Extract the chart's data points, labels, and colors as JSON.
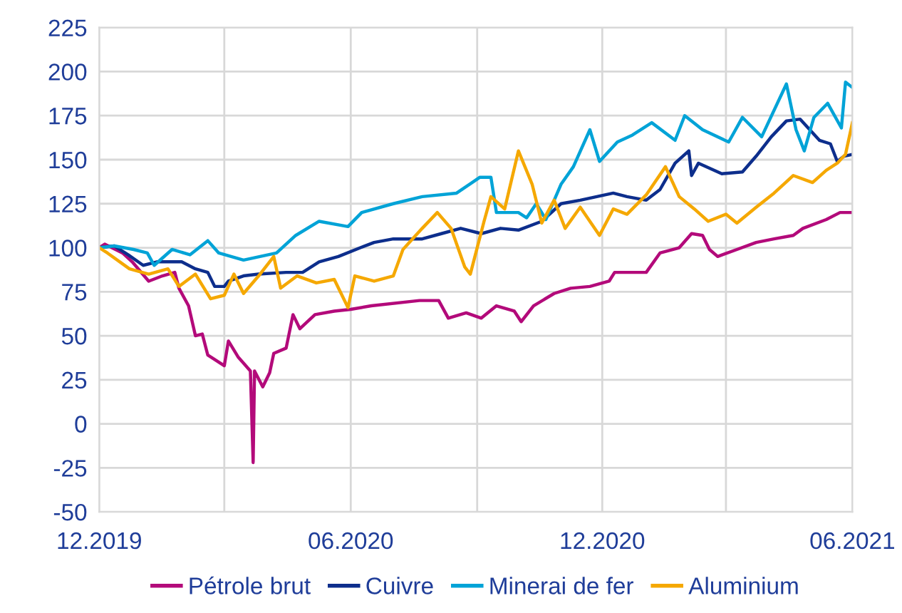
{
  "chart_data": {
    "type": "line",
    "xlim": [
      "2019-12-01",
      "2021-06-01"
    ],
    "xticks": [
      {
        "value": "2019-12-01",
        "label": "12.2019"
      },
      {
        "value": "2020-03-01",
        "label": null
      },
      {
        "value": "2020-06-01",
        "label": "06.2020"
      },
      {
        "value": "2020-09-01",
        "label": null
      },
      {
        "value": "2020-12-01",
        "label": "12.2020"
      },
      {
        "value": "2021-03-01",
        "label": null
      },
      {
        "value": "2021-06-01",
        "label": "06.2021"
      }
    ],
    "ylim": [
      -50,
      225
    ],
    "yticks": [
      -50,
      -25,
      0,
      25,
      50,
      75,
      100,
      125,
      150,
      175,
      200,
      225
    ],
    "grid": true,
    "legend": "bottom",
    "line_style": "solid",
    "marker": "none",
    "series": [
      {
        "name": "Pétrole brut",
        "color": "#b30a7a",
        "x": [
          "2019-12-01",
          "2019-12-05",
          "2019-12-18",
          "2019-12-25",
          "2020-01-06",
          "2020-01-16",
          "2020-01-25",
          "2020-01-28",
          "2020-02-04",
          "2020-02-09",
          "2020-02-14",
          "2020-02-18",
          "2020-03-01",
          "2020-03-04",
          "2020-03-11",
          "2020-03-20",
          "2020-03-22",
          "2020-03-23",
          "2020-03-29",
          "2020-04-03",
          "2020-04-06",
          "2020-04-15",
          "2020-04-20",
          "2020-04-25",
          "2020-05-06",
          "2020-05-20",
          "2020-06-01",
          "2020-06-16",
          "2020-07-21",
          "2020-08-04",
          "2020-08-11",
          "2020-08-24",
          "2020-09-04",
          "2020-09-15",
          "2020-09-28",
          "2020-10-03",
          "2020-10-12",
          "2020-10-27",
          "2020-11-08",
          "2020-11-22",
          "2020-12-06",
          "2020-12-10",
          "2021-01-02",
          "2021-01-12",
          "2021-01-26",
          "2021-02-04",
          "2021-02-12",
          "2021-02-17",
          "2021-02-23",
          "2021-03-09",
          "2021-03-23",
          "2021-04-05",
          "2021-04-19",
          "2021-04-26",
          "2021-05-13",
          "2021-05-23",
          "2021-06-01"
        ],
        "values": [
          100,
          102,
          97,
          92,
          81,
          84,
          86,
          77,
          67,
          50,
          51,
          39,
          33,
          47,
          38,
          30,
          -22,
          30,
          21,
          29,
          40,
          43,
          62,
          54,
          62,
          64,
          65,
          67,
          70,
          70,
          60,
          63,
          60,
          67,
          64,
          58,
          67,
          74,
          77,
          78,
          81,
          86,
          86,
          97,
          100,
          108,
          107,
          99,
          95,
          99,
          103,
          105,
          107,
          111,
          116,
          120,
          120
        ]
      },
      {
        "name": "Cuivre",
        "color": "#0d2e8c",
        "x": [
          "2019-12-01",
          "2019-12-12",
          "2019-12-22",
          "2020-01-02",
          "2020-01-12",
          "2020-01-30",
          "2020-02-09",
          "2020-02-18",
          "2020-02-23",
          "2020-03-01",
          "2020-03-04",
          "2020-03-15",
          "2020-03-26",
          "2020-04-15",
          "2020-04-27",
          "2020-05-09",
          "2020-05-23",
          "2020-06-08",
          "2020-06-18",
          "2020-07-02",
          "2020-07-23",
          "2020-08-06",
          "2020-08-20",
          "2020-09-04",
          "2020-09-18",
          "2020-10-01",
          "2020-10-18",
          "2020-11-01",
          "2020-11-15",
          "2020-12-09",
          "2020-12-19",
          "2021-01-02",
          "2021-01-12",
          "2021-01-23",
          "2021-02-02",
          "2021-02-04",
          "2021-02-09",
          "2021-02-26",
          "2021-03-13",
          "2021-03-23",
          "2021-04-03",
          "2021-04-14",
          "2021-04-24",
          "2021-05-01",
          "2021-05-08",
          "2021-05-16",
          "2021-05-21",
          "2021-05-26",
          "2021-06-01"
        ],
        "values": [
          100,
          101,
          96,
          90,
          92,
          92,
          88,
          86,
          78,
          78,
          81,
          84,
          85,
          86,
          86,
          92,
          95,
          100,
          103,
          105,
          105,
          108,
          111,
          108,
          111,
          110,
          115,
          125,
          127,
          131,
          129,
          127,
          133,
          148,
          155,
          141,
          148,
          142,
          143,
          152,
          163,
          172,
          173,
          167,
          161,
          159,
          149,
          152,
          153
        ]
      },
      {
        "name": "Minerai de fer",
        "color": "#00a3d7",
        "x": [
          "2019-12-01",
          "2019-12-12",
          "2019-12-26",
          "2020-01-05",
          "2020-01-10",
          "2020-01-23",
          "2020-02-05",
          "2020-02-18",
          "2020-02-26",
          "2020-03-15",
          "2020-04-08",
          "2020-04-22",
          "2020-05-09",
          "2020-05-30",
          "2020-06-09",
          "2020-07-02",
          "2020-07-23",
          "2020-08-17",
          "2020-09-03",
          "2020-09-11",
          "2020-09-15",
          "2020-10-01",
          "2020-10-07",
          "2020-10-14",
          "2020-10-21",
          "2020-11-01",
          "2020-11-10",
          "2020-11-22",
          "2020-11-29",
          "2020-12-12",
          "2020-12-23",
          "2021-01-06",
          "2021-01-23",
          "2021-01-30",
          "2021-02-12",
          "2021-03-03",
          "2021-03-13",
          "2021-03-27",
          "2021-04-14",
          "2021-04-21",
          "2021-04-27",
          "2021-05-04",
          "2021-05-14",
          "2021-05-24",
          "2021-05-27",
          "2021-06-01"
        ],
        "values": [
          100,
          101,
          99,
          97,
          90,
          99,
          96,
          104,
          97,
          93,
          97,
          107,
          115,
          112,
          120,
          125,
          129,
          131,
          140,
          140,
          120,
          120,
          117,
          125,
          116,
          136,
          146,
          167,
          149,
          160,
          164,
          171,
          161,
          175,
          167,
          160,
          174,
          163,
          193,
          167,
          155,
          174,
          182,
          168,
          194,
          191
        ]
      },
      {
        "name": "Aluminium",
        "color": "#f5a800",
        "x": [
          "2019-12-01",
          "2019-12-07",
          "2019-12-23",
          "2020-01-06",
          "2020-01-20",
          "2020-01-28",
          "2020-02-09",
          "2020-02-20",
          "2020-03-01",
          "2020-03-08",
          "2020-03-15",
          "2020-03-26",
          "2020-04-06",
          "2020-04-11",
          "2020-04-23",
          "2020-05-07",
          "2020-05-20",
          "2020-05-30",
          "2020-06-04",
          "2020-06-18",
          "2020-07-02",
          "2020-07-09",
          "2020-07-23",
          "2020-08-03",
          "2020-08-13",
          "2020-08-23",
          "2020-08-27",
          "2020-09-06",
          "2020-09-11",
          "2020-09-21",
          "2020-10-01",
          "2020-10-11",
          "2020-10-18",
          "2020-10-27",
          "2020-11-04",
          "2020-11-15",
          "2020-11-29",
          "2020-12-09",
          "2020-12-19",
          "2021-01-02",
          "2021-01-16",
          "2021-01-26",
          "2021-02-06",
          "2021-02-16",
          "2021-03-01",
          "2021-03-09",
          "2021-03-23",
          "2021-04-05",
          "2021-04-19",
          "2021-05-03",
          "2021-05-13",
          "2021-05-21",
          "2021-05-27",
          "2021-06-01"
        ],
        "values": [
          100,
          97,
          88,
          85,
          88,
          78,
          85,
          71,
          73,
          85,
          74,
          84,
          95,
          77,
          84,
          80,
          82,
          66,
          84,
          81,
          84,
          99,
          111,
          120,
          111,
          89,
          85,
          115,
          129,
          122,
          155,
          136,
          114,
          127,
          111,
          123,
          107,
          122,
          119,
          130,
          146,
          129,
          122,
          115,
          119,
          114,
          123,
          131,
          141,
          137,
          144,
          148,
          153,
          171
        ]
      }
    ]
  }
}
